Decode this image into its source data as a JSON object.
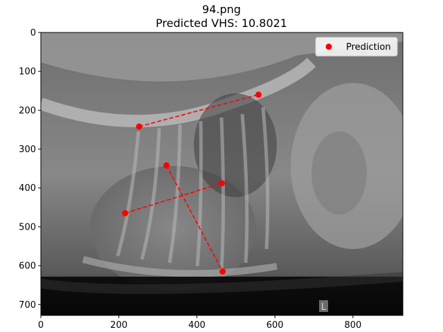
{
  "chart_data": {
    "type": "scatter",
    "title": "94.png",
    "subtitle": "Predicted VHS: 10.8021",
    "xlabel": "",
    "ylabel": "",
    "xlim": [
      0,
      928
    ],
    "ylim": [
      728,
      0
    ],
    "x_ticks": [
      0,
      200,
      400,
      600,
      800
    ],
    "y_ticks": [
      0,
      100,
      200,
      300,
      400,
      500,
      600,
      700
    ],
    "grid": false,
    "legend_position": "top-right",
    "series": [
      {
        "name": "Prediction",
        "color": "#ff0000",
        "points": [
          {
            "x": 252,
            "y": 242
          },
          {
            "x": 558,
            "y": 160
          },
          {
            "x": 322,
            "y": 342
          },
          {
            "x": 466,
            "y": 615
          },
          {
            "x": 216,
            "y": 465
          },
          {
            "x": 464,
            "y": 388
          }
        ]
      }
    ],
    "segments": [
      {
        "from": 0,
        "to": 1
      },
      {
        "from": 2,
        "to": 3
      },
      {
        "from": 4,
        "to": 5
      }
    ],
    "line_style": "dashed",
    "background_image": "canine-lateral-thoracic-radiograph",
    "image_marker": "L"
  }
}
